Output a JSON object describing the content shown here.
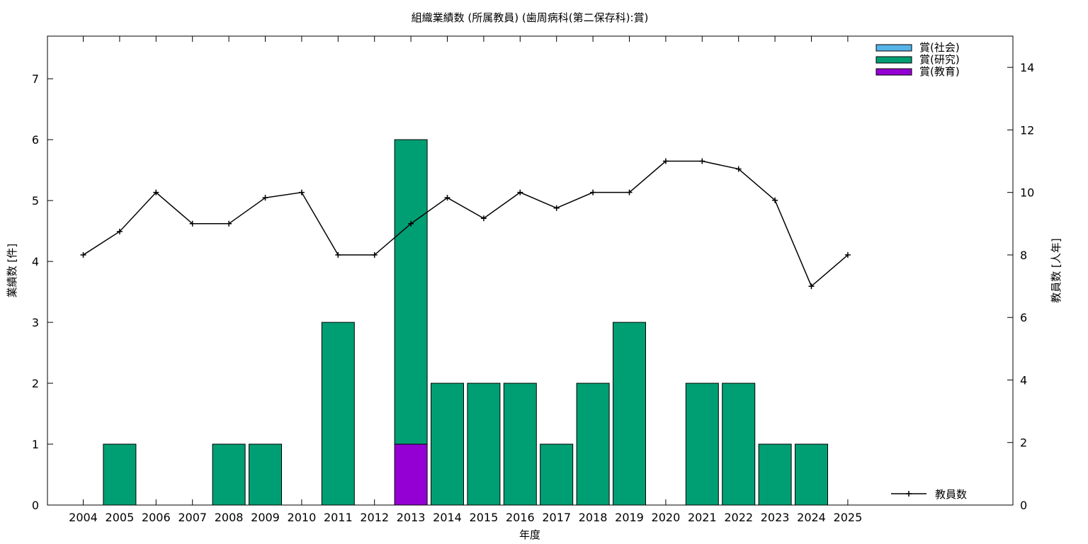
{
  "chart_data": {
    "type": "bar",
    "title": "組織業績数 (所属教員) (歯周病科(第二保存科):賞)",
    "xlabel": "年度",
    "ylabel": "業績数 [件]",
    "y2label": "教員数 [人年]",
    "categories": [
      "2004",
      "2005",
      "2006",
      "2007",
      "2008",
      "2009",
      "2010",
      "2011",
      "2012",
      "2013",
      "2014",
      "2015",
      "2016",
      "2017",
      "2018",
      "2019",
      "2020",
      "2021",
      "2022",
      "2023",
      "2024",
      "2025"
    ],
    "ylim": [
      0,
      7.7
    ],
    "y2lim": [
      0,
      15.0
    ],
    "yticks": [
      "0",
      "1",
      "2",
      "3",
      "4",
      "5",
      "6",
      "7"
    ],
    "y2ticks": [
      "0",
      "2",
      "4",
      "6",
      "8",
      "10",
      "12",
      "14"
    ],
    "stacked": true,
    "legend_position": "top-right",
    "series": [
      {
        "name": "賞(社会)",
        "color": "#56b4e9",
        "values": [
          0,
          0,
          0,
          0,
          0,
          0,
          0,
          0,
          0,
          0,
          0,
          0,
          0,
          0,
          0,
          0,
          0,
          0,
          0,
          0,
          0,
          0
        ]
      },
      {
        "name": "賞(研究)",
        "color": "#009e73",
        "values": [
          0,
          1,
          0,
          0,
          1,
          1,
          0,
          3,
          0,
          5,
          2,
          2,
          2,
          1,
          2,
          3,
          0,
          2,
          2,
          1,
          1,
          0
        ]
      },
      {
        "name": "賞(教育)",
        "color": "#9400d3",
        "values": [
          0,
          0,
          0,
          0,
          0,
          0,
          0,
          0,
          0,
          1,
          0,
          0,
          0,
          0,
          0,
          0,
          0,
          0,
          0,
          0,
          0,
          0
        ]
      }
    ],
    "stack_order": [
      "賞(教育)",
      "賞(研究)",
      "賞(社会)"
    ],
    "line_series": {
      "name": "教員数",
      "axis": "right",
      "color": "#000000",
      "values": [
        8.0,
        8.75,
        10.0,
        9.0,
        9.0,
        9.83,
        10.0,
        8.0,
        8.0,
        9.0,
        9.83,
        9.17,
        10.0,
        9.5,
        10.0,
        10.0,
        11.0,
        11.0,
        10.75,
        9.75,
        7.0,
        8.0
      ]
    }
  }
}
